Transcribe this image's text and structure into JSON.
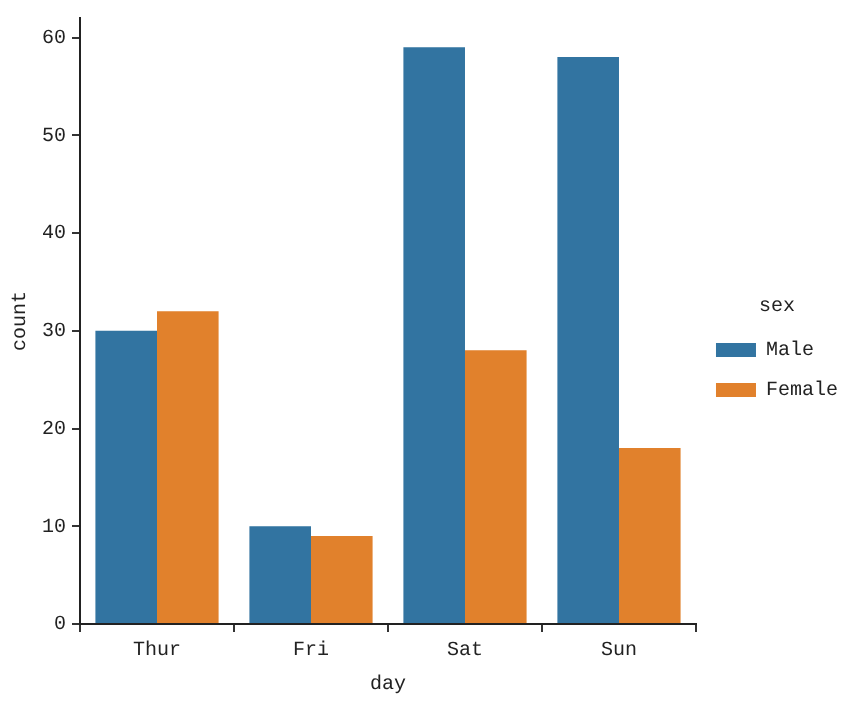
{
  "chart_data": {
    "type": "bar",
    "xlabel": "day",
    "ylabel": "count",
    "legend_title": "sex",
    "categories": [
      "Thur",
      "Fri",
      "Sat",
      "Sun"
    ],
    "series": [
      {
        "name": "Male",
        "color": "#3274a1",
        "values": [
          30,
          10,
          59,
          58
        ]
      },
      {
        "name": "Female",
        "color": "#e1812c",
        "values": [
          32,
          9,
          28,
          18
        ]
      }
    ],
    "ylim": [
      0,
      62
    ],
    "yticks": [
      0,
      10,
      20,
      30,
      40,
      50,
      60
    ],
    "grid": false,
    "legend": "right"
  }
}
